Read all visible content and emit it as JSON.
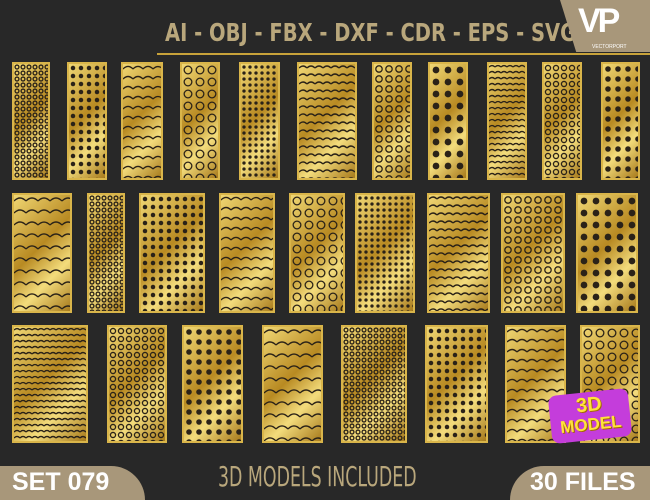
{
  "header": {
    "formats": "AI - OBJ - FBX - DXF - CDR - EPS - SVG"
  },
  "logo": {
    "mark": "VP",
    "name": "VECTORPORT"
  },
  "footer": {
    "set": "SET 079",
    "tagline": "3D MODELS INCLUDED",
    "files": "30 FILES"
  },
  "badge": {
    "line1": "3D",
    "line2": "MODEL"
  },
  "colors": {
    "background": "#282828",
    "gold": "#d9b54a",
    "accent": "#a8977a",
    "badge": "#c43ddb"
  }
}
